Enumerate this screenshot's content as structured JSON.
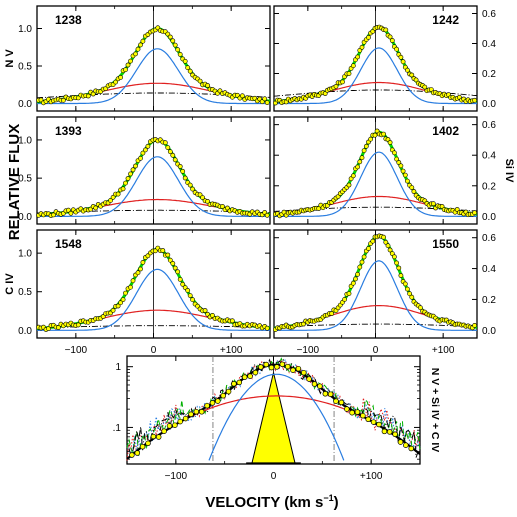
{
  "chart_data": [
    {
      "type": "line",
      "title": "",
      "xlabel": "VELOCITY  (km s",
      "xlabel_sup": "−1",
      "xlabel_close": ")",
      "ylabel": "RELATIVE FLUX",
      "xlim": [
        -150,
        150
      ],
      "x_ticks": [
        -100,
        0,
        100
      ],
      "x_tick_labels": [
        "−100",
        "0",
        "+100"
      ],
      "left_ylim": [
        -0.1,
        1.3
      ],
      "left_ticks": [
        0.0,
        0.5,
        1.0
      ],
      "left_tick_labels": [
        "0.0",
        "0.5",
        "1.0"
      ],
      "right_ylim": [
        -0.05,
        0.65
      ],
      "right_ticks": [
        0.0,
        0.2,
        0.4,
        0.6
      ],
      "right_tick_labels": [
        "0.0",
        "0.2",
        "0.4",
        "0.6"
      ],
      "row_labels": [
        "N V",
        "Si IV",
        "C IV"
      ],
      "row_label_sides": [
        "left",
        "right",
        "left"
      ],
      "panels": [
        {
          "label": "1238",
          "axis": "left",
          "narrow": {
            "amp": 0.73,
            "sigma": 27
          },
          "broad": {
            "amp": 0.27,
            "sigma": 70
          },
          "base": {
            "amp": 0.14,
            "sigma": 140
          }
        },
        {
          "label": "1242",
          "axis": "right",
          "narrow": {
            "amp": 0.37,
            "sigma": 27
          },
          "broad": {
            "amp": 0.14,
            "sigma": 70
          },
          "base": {
            "amp": 0.09,
            "sigma": 140
          }
        },
        {
          "label": "1393",
          "axis": "left",
          "narrow": {
            "amp": 0.78,
            "sigma": 27
          },
          "broad": {
            "amp": 0.22,
            "sigma": 70
          },
          "base": {
            "amp": 0.08,
            "sigma": 140
          }
        },
        {
          "label": "1402",
          "axis": "right",
          "narrow": {
            "amp": 0.42,
            "sigma": 27
          },
          "broad": {
            "amp": 0.13,
            "sigma": 70
          },
          "base": {
            "amp": 0.06,
            "sigma": 140
          }
        },
        {
          "label": "1548",
          "axis": "left",
          "narrow": {
            "amp": 0.79,
            "sigma": 27
          },
          "broad": {
            "amp": 0.26,
            "sigma": 70
          },
          "base": {
            "amp": 0.06,
            "sigma": 140
          }
        },
        {
          "label": "1550",
          "axis": "right",
          "narrow": {
            "amp": 0.45,
            "sigma": 27
          },
          "broad": {
            "amp": 0.16,
            "sigma": 70
          },
          "base": {
            "amp": 0.04,
            "sigma": 140
          }
        }
      ],
      "center_velocity": 5,
      "colors": {
        "data_points": "#ffff00",
        "data_edge": "#000000",
        "total_fit": "#00d800",
        "narrow": "#2a7de0",
        "broad": "#e02020",
        "base": "#000000",
        "frame": "#000000"
      }
    },
    {
      "type": "line",
      "title": "",
      "xlabel": "VELOCITY  (km s−1)",
      "ylabel": "",
      "xlim": [
        -150,
        150
      ],
      "x_ticks": [
        -100,
        0,
        100
      ],
      "x_tick_labels": [
        "−100",
        "0",
        "+100"
      ],
      "yscale": "log",
      "ylim": [
        0.025,
        1.5
      ],
      "y_ticks": [
        0.1,
        1
      ],
      "y_tick_labels": [
        ".1",
        "1"
      ],
      "right_label": "N V + Si IV + C IV",
      "dashed_vlines": [
        -62,
        62
      ],
      "narrow": {
        "amp": 0.75,
        "sigma": 27
      },
      "broad": {
        "amp": 0.33,
        "sigma": 70
      },
      "center_velocity": 3,
      "triangle": {
        "peak": 0.8,
        "half_width": 22,
        "floor": 0.026
      },
      "error_bar": {
        "x_from": -28,
        "x_to": 28,
        "y": 0.026
      },
      "noisy_series": [
        {
          "color": "#e02020",
          "style": "dotted"
        },
        {
          "color": "#2a7de0",
          "style": "dotted"
        },
        {
          "color": "#00b000",
          "style": "dashed"
        },
        {
          "color": "#000000",
          "style": "dash-dot"
        }
      ],
      "colors": {
        "data_points": "#ffff00",
        "total_fit": "#000000",
        "narrow": "#2a7de0",
        "broad": "#e02020",
        "triangle_fill": "#ffff00"
      }
    }
  ]
}
